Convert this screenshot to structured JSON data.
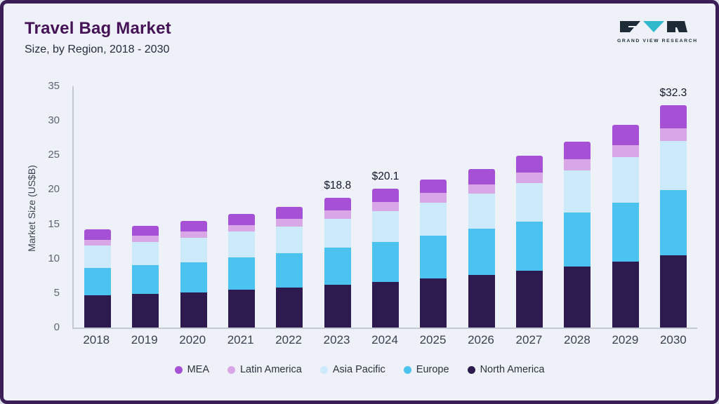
{
  "page": {
    "title": "Travel Bag Market",
    "subtitle": "Size, by Region, 2018 - 2030"
  },
  "logo": {
    "text": "GRAND VIEW RESEARCH",
    "dark_color": "#1d2b36",
    "teal_color": "#2fb9cb"
  },
  "chart_data": {
    "type": "bar",
    "stacked": true,
    "title": "Travel Bag Market Size, by Region, 2018 - 2030",
    "xlabel": "",
    "ylabel": "Market Size (US$B)",
    "ylim": [
      0,
      35
    ],
    "yticks": [
      0,
      5,
      10,
      15,
      20,
      25,
      30,
      35
    ],
    "grid": false,
    "legend_position": "bottom",
    "categories": [
      "2018",
      "2019",
      "2020",
      "2021",
      "2022",
      "2023",
      "2024",
      "2025",
      "2026",
      "2027",
      "2028",
      "2029",
      "2030"
    ],
    "series": [
      {
        "name": "North America",
        "color": "#2d1a4e",
        "values": [
          4.7,
          4.9,
          5.1,
          5.5,
          5.8,
          6.2,
          6.6,
          7.1,
          7.6,
          8.2,
          8.9,
          9.6,
          10.5
        ]
      },
      {
        "name": "Europe",
        "color": "#4cc2f1",
        "values": [
          4.0,
          4.2,
          4.4,
          4.7,
          5.0,
          5.4,
          5.8,
          6.2,
          6.7,
          7.2,
          7.8,
          8.5,
          9.4
        ]
      },
      {
        "name": "Asia Pacific",
        "color": "#cdeafb",
        "values": [
          3.2,
          3.3,
          3.5,
          3.7,
          3.9,
          4.2,
          4.5,
          4.8,
          5.1,
          5.6,
          6.1,
          6.6,
          7.2
        ]
      },
      {
        "name": "Latin America",
        "color": "#d9a7e8",
        "values": [
          0.8,
          0.9,
          0.9,
          1.0,
          1.1,
          1.2,
          1.3,
          1.4,
          1.4,
          1.5,
          1.6,
          1.8,
          1.8
        ]
      },
      {
        "name": "MEA",
        "color": "#a650d5",
        "values": [
          1.5,
          1.5,
          1.6,
          1.6,
          1.7,
          1.8,
          1.9,
          2.0,
          2.2,
          2.4,
          2.6,
          2.9,
          3.4
        ]
      }
    ],
    "totals": [
      14.2,
      14.8,
      15.5,
      16.5,
      17.5,
      18.8,
      20.1,
      21.5,
      23.0,
      24.9,
      27.0,
      29.4,
      32.3
    ],
    "annotations": [
      {
        "category": "2023",
        "text": "$18.8"
      },
      {
        "category": "2024",
        "text": "$20.1"
      },
      {
        "category": "2030",
        "text": "$32.3"
      }
    ],
    "legend": [
      "MEA",
      "Latin America",
      "Asia Pacific",
      "Europe",
      "North America"
    ]
  }
}
